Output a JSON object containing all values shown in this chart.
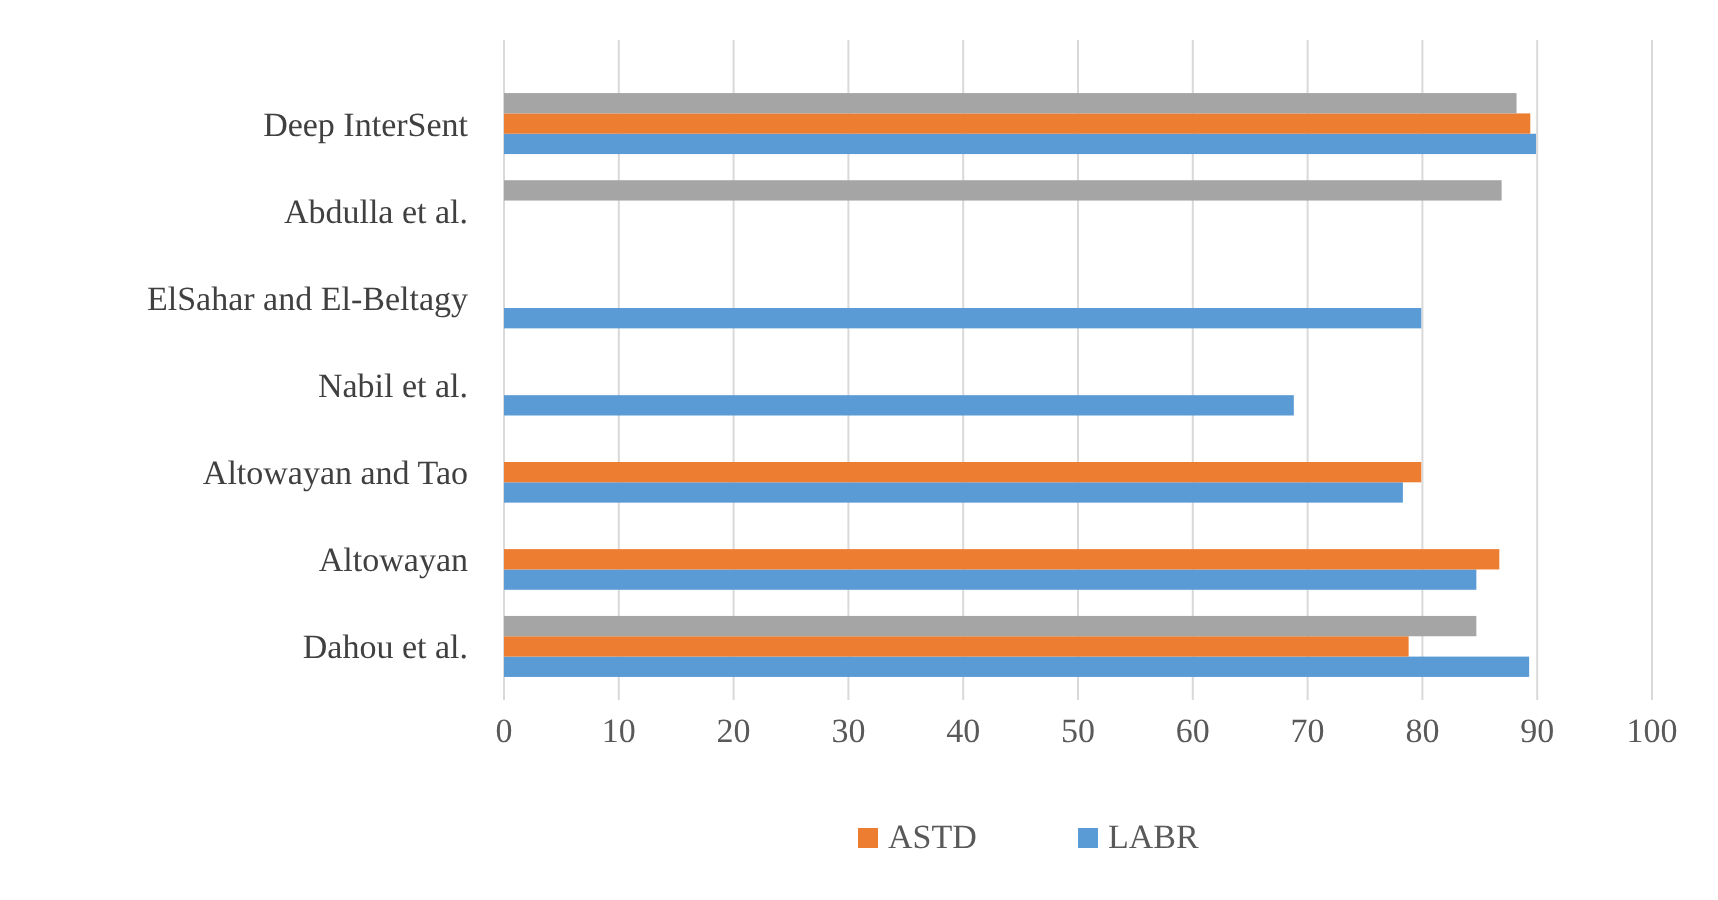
{
  "chart_data": {
    "type": "bar",
    "orientation": "horizontal",
    "categories": [
      "Deep InterSent",
      "Abdulla et al.",
      "ElSahar and El-Beltagy",
      "Nabil et al.",
      "Altowayan and Tao",
      "Altowayan",
      "Dahou et al."
    ],
    "series": [
      {
        "name": "LABR",
        "color": "#5b9bd5",
        "values": [
          89.9,
          null,
          79.9,
          68.8,
          78.3,
          84.7,
          89.3
        ]
      },
      {
        "name": "ASTD",
        "color": "#ed7d31",
        "values": [
          89.4,
          null,
          null,
          null,
          79.9,
          86.7,
          78.8
        ]
      },
      {
        "color": "#a5a5a5",
        "values": [
          88.2,
          86.9,
          null,
          null,
          null,
          null,
          84.7
        ]
      }
    ],
    "xlim": [
      0,
      100
    ],
    "xticks": [
      0,
      10,
      20,
      30,
      40,
      50,
      60,
      70,
      80,
      90,
      100
    ],
    "grid": "x",
    "legend": "bottom"
  }
}
